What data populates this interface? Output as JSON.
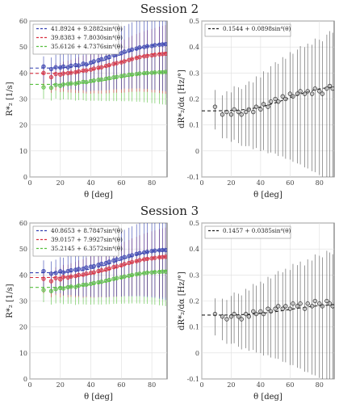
{
  "figure": {
    "sessions": [
      {
        "title": "Session 2"
      },
      {
        "title": "Session 3"
      }
    ]
  },
  "chart_data": [
    {
      "type": "scatter",
      "session": "Session 2",
      "ylabel": "R*₂ [1/s]",
      "xlabel": "θ [deg]",
      "xlim": [
        0,
        90
      ],
      "ylim": [
        0,
        60
      ],
      "xticks": [
        0,
        20,
        40,
        60,
        80
      ],
      "yticks": [
        0,
        10,
        20,
        30,
        40,
        50,
        60
      ],
      "grid": true,
      "legend_position": "top-left",
      "series": [
        {
          "name": "41.8924 + 9.2882sin⁴(θ)",
          "color": "#3340b0",
          "fit": [
            41.8924,
            9.2882
          ],
          "err_top": 52,
          "x": [
            9,
            14,
            17,
            20,
            22,
            25,
            27,
            30,
            32,
            35,
            37,
            40,
            42,
            45,
            47,
            50,
            52,
            55,
            57,
            60,
            62,
            65,
            67,
            70,
            72,
            75,
            77,
            80,
            82,
            85,
            87,
            89
          ],
          "y": [
            42.5,
            41.5,
            42.2,
            42.1,
            42.5,
            42.2,
            42.8,
            43.0,
            42.9,
            43.6,
            43.3,
            44.0,
            44.5,
            44.9,
            45.3,
            45.8,
            46.2,
            46.9,
            47.2,
            47.6,
            48.2,
            48.6,
            49.0,
            49.4,
            49.8,
            50.0,
            50.3,
            50.4,
            50.7,
            50.9,
            51.0,
            51.1
          ]
        },
        {
          "name": "39.8383 + 7.8030sin⁴(θ)",
          "color": "#d83040",
          "fit": [
            39.8383,
            7.803
          ],
          "err_top": 44,
          "x": [
            9,
            14,
            17,
            20,
            22,
            25,
            27,
            30,
            32,
            35,
            37,
            40,
            42,
            45,
            47,
            50,
            52,
            55,
            57,
            60,
            62,
            65,
            67,
            70,
            72,
            75,
            77,
            80,
            82,
            85,
            87,
            89
          ],
          "y": [
            40.0,
            38.4,
            39.6,
            39.4,
            39.8,
            39.9,
            40.1,
            40.3,
            40.6,
            40.9,
            41.0,
            41.3,
            41.7,
            42.0,
            42.2,
            42.7,
            43.0,
            43.5,
            43.8,
            44.1,
            44.5,
            45.0,
            45.4,
            45.8,
            46.1,
            46.4,
            46.6,
            46.8,
            47.0,
            47.2,
            47.3,
            47.4
          ]
        },
        {
          "name": "35.6126 + 4.7376sin⁴(θ)",
          "color": "#58c040",
          "fit": [
            35.6126,
            4.7376
          ],
          "err_top": 36,
          "x": [
            9,
            14,
            17,
            20,
            22,
            25,
            27,
            30,
            32,
            35,
            37,
            40,
            42,
            45,
            47,
            50,
            52,
            55,
            57,
            60,
            62,
            65,
            67,
            70,
            72,
            75,
            77,
            80,
            82,
            85,
            87,
            89
          ],
          "y": [
            34.5,
            34.3,
            35.4,
            35.1,
            35.6,
            35.8,
            36.0,
            35.9,
            36.3,
            36.6,
            36.5,
            36.9,
            37.1,
            37.4,
            37.5,
            37.8,
            38.0,
            38.3,
            38.5,
            38.8,
            39.0,
            39.3,
            39.4,
            39.6,
            39.8,
            39.9,
            40.0,
            40.1,
            40.2,
            40.3,
            40.3,
            40.4
          ]
        }
      ]
    },
    {
      "type": "scatter",
      "session": "Session 2",
      "ylabel": "dR*₂/dα [Hz/°]",
      "xlabel": "θ [deg]",
      "xlim": [
        0,
        90
      ],
      "ylim": [
        -0.1,
        0.5
      ],
      "xticks": [
        0,
        20,
        40,
        60,
        80
      ],
      "yticks": [
        -0.1,
        0,
        0.1,
        0.2,
        0.3,
        0.4,
        0.5
      ],
      "grid": true,
      "legend_position": "top-left",
      "series": [
        {
          "name": "0.1544 + 0.0898sin⁴(θ)",
          "color": "#222222",
          "fit": [
            0.1544,
            0.0898
          ],
          "err_top": 0.43,
          "x": [
            9,
            14,
            17,
            20,
            22,
            25,
            27,
            30,
            32,
            35,
            37,
            40,
            42,
            45,
            47,
            50,
            52,
            55,
            57,
            60,
            62,
            65,
            67,
            70,
            72,
            75,
            77,
            80,
            82,
            85,
            87,
            89
          ],
          "y": [
            0.17,
            0.14,
            0.15,
            0.14,
            0.16,
            0.15,
            0.14,
            0.15,
            0.16,
            0.15,
            0.17,
            0.16,
            0.18,
            0.17,
            0.19,
            0.2,
            0.19,
            0.21,
            0.2,
            0.22,
            0.21,
            0.22,
            0.23,
            0.22,
            0.23,
            0.22,
            0.24,
            0.23,
            0.22,
            0.24,
            0.25,
            0.24
          ]
        }
      ]
    },
    {
      "type": "scatter",
      "session": "Session 3",
      "ylabel": "R*₂ [1/s]",
      "xlabel": "θ [deg]",
      "xlim": [
        0,
        90
      ],
      "ylim": [
        0,
        60
      ],
      "xticks": [
        0,
        20,
        40,
        60,
        80
      ],
      "yticks": [
        0,
        10,
        20,
        30,
        40,
        50,
        60
      ],
      "grid": true,
      "legend_position": "top-left",
      "series": [
        {
          "name": "40.8653 + 8.7847sin⁴(θ)",
          "color": "#3340b0",
          "fit": [
            40.8653,
            8.7847
          ],
          "err_top": 55,
          "x": [
            9,
            14,
            17,
            20,
            22,
            25,
            27,
            30,
            32,
            35,
            37,
            40,
            42,
            45,
            47,
            50,
            52,
            55,
            57,
            60,
            62,
            65,
            67,
            70,
            72,
            75,
            77,
            80,
            82,
            85,
            87,
            89
          ],
          "y": [
            41.5,
            40.5,
            40.8,
            41.4,
            41.0,
            41.5,
            41.8,
            42.0,
            42.3,
            42.4,
            42.9,
            43.2,
            43.4,
            43.9,
            44.3,
            44.6,
            45.1,
            45.6,
            46.0,
            46.4,
            46.9,
            47.3,
            47.6,
            48.1,
            48.4,
            48.7,
            48.9,
            49.2,
            49.4,
            49.5,
            49.6,
            49.6
          ]
        },
        {
          "name": "39.0157 + 7.9927sin⁴(θ)",
          "color": "#d83040",
          "fit": [
            39.0157,
            7.9927
          ],
          "err_top": 45,
          "x": [
            9,
            14,
            17,
            20,
            22,
            25,
            27,
            30,
            32,
            35,
            37,
            40,
            42,
            45,
            47,
            50,
            52,
            55,
            57,
            60,
            62,
            65,
            67,
            70,
            72,
            75,
            77,
            80,
            82,
            85,
            87,
            89
          ],
          "y": [
            38.5,
            37.6,
            38.8,
            38.3,
            39.2,
            39.0,
            39.4,
            39.6,
            40.0,
            40.1,
            40.5,
            40.8,
            41.0,
            41.5,
            41.8,
            42.1,
            42.5,
            43.0,
            43.3,
            43.7,
            44.2,
            44.6,
            45.0,
            45.3,
            45.7,
            46.0,
            46.2,
            46.4,
            46.6,
            46.8,
            46.9,
            47.0
          ]
        },
        {
          "name": "35.2145 + 6.3572sin⁴(θ)",
          "color": "#58c040",
          "fit": [
            35.2145,
            6.3572
          ],
          "err_top": 38,
          "x": [
            9,
            14,
            17,
            20,
            22,
            25,
            27,
            30,
            32,
            35,
            37,
            40,
            42,
            45,
            47,
            50,
            52,
            55,
            57,
            60,
            62,
            65,
            67,
            70,
            72,
            75,
            77,
            80,
            82,
            85,
            87,
            89
          ],
          "y": [
            34.2,
            33.8,
            34.6,
            35.0,
            34.8,
            35.3,
            35.5,
            35.4,
            35.9,
            36.2,
            36.3,
            36.6,
            36.9,
            37.2,
            37.4,
            37.8,
            38.1,
            38.5,
            38.8,
            39.1,
            39.4,
            39.7,
            40.0,
            40.3,
            40.5,
            40.7,
            40.9,
            41.0,
            41.1,
            41.2,
            41.3,
            41.3
          ]
        }
      ]
    },
    {
      "type": "scatter",
      "session": "Session 3",
      "ylabel": "dR*₂/dα [Hz/°]",
      "xlabel": "θ [deg]",
      "xlim": [
        0,
        90
      ],
      "ylim": [
        -0.1,
        0.5
      ],
      "xticks": [
        0,
        20,
        40,
        60,
        80
      ],
      "yticks": [
        -0.1,
        0,
        0.1,
        0.2,
        0.3,
        0.4,
        0.5
      ],
      "grid": true,
      "legend_position": "top-left",
      "series": [
        {
          "name": "0.1457 + 0.0385sin⁴(θ)",
          "color": "#222222",
          "fit": [
            0.1457,
            0.0385
          ],
          "err_top": 0.4,
          "x": [
            9,
            14,
            17,
            20,
            22,
            25,
            27,
            30,
            32,
            35,
            37,
            40,
            42,
            45,
            47,
            50,
            52,
            55,
            57,
            60,
            62,
            65,
            67,
            70,
            72,
            75,
            77,
            80,
            82,
            85,
            87,
            89
          ],
          "y": [
            0.15,
            0.14,
            0.13,
            0.14,
            0.15,
            0.14,
            0.13,
            0.15,
            0.14,
            0.16,
            0.15,
            0.16,
            0.15,
            0.17,
            0.16,
            0.17,
            0.18,
            0.17,
            0.18,
            0.17,
            0.19,
            0.18,
            0.19,
            0.17,
            0.19,
            0.18,
            0.2,
            0.19,
            0.18,
            0.2,
            0.19,
            0.18
          ]
        }
      ]
    }
  ]
}
